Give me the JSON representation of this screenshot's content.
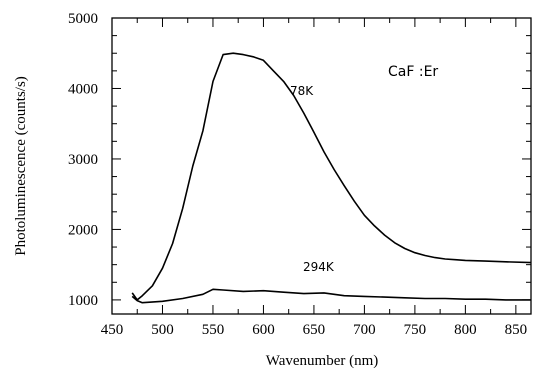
{
  "chart_data": {
    "type": "line",
    "xlabel": "Wavenumber (nm)",
    "ylabel": "Photoluminescence (counts/s)",
    "xlim": [
      450,
      865
    ],
    "ylim": [
      800,
      5000
    ],
    "xticks": [
      450,
      500,
      550,
      600,
      650,
      700,
      750,
      800,
      850
    ],
    "yticks": [
      1000,
      2000,
      3000,
      4000,
      5000
    ],
    "grid": false,
    "annotation": "CaF  :Er",
    "series": [
      {
        "name": "78K",
        "x": [
          470,
          475,
          480,
          490,
          500,
          510,
          520,
          530,
          540,
          550,
          560,
          570,
          580,
          590,
          600,
          610,
          620,
          630,
          640,
          650,
          660,
          670,
          680,
          690,
          700,
          710,
          720,
          730,
          740,
          750,
          760,
          770,
          780,
          790,
          800,
          820,
          840,
          865
        ],
        "y": [
          1100,
          1000,
          1060,
          1200,
          1450,
          1800,
          2300,
          2900,
          3400,
          4100,
          4480,
          4500,
          4480,
          4450,
          4400,
          4250,
          4100,
          3900,
          3650,
          3380,
          3100,
          2850,
          2620,
          2400,
          2200,
          2050,
          1920,
          1810,
          1730,
          1670,
          1630,
          1600,
          1580,
          1570,
          1560,
          1550,
          1540,
          1530
        ]
      },
      {
        "name": "294K",
        "x": [
          470,
          475,
          480,
          500,
          520,
          540,
          550,
          560,
          580,
          600,
          620,
          640,
          660,
          680,
          700,
          720,
          740,
          760,
          780,
          800,
          820,
          840,
          865
        ],
        "y": [
          1050,
          990,
          960,
          980,
          1020,
          1080,
          1150,
          1140,
          1120,
          1130,
          1110,
          1090,
          1100,
          1060,
          1050,
          1040,
          1030,
          1020,
          1020,
          1010,
          1010,
          1000,
          1000
        ]
      }
    ]
  }
}
